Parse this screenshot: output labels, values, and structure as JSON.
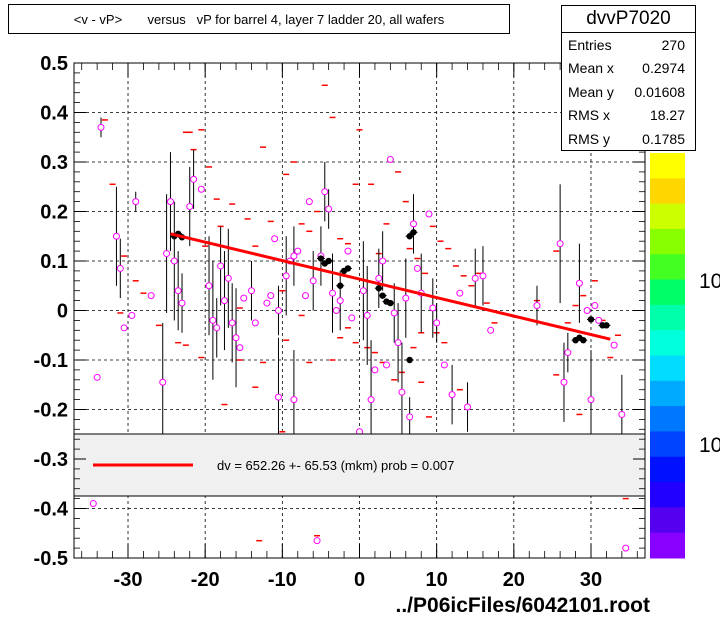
{
  "title": "<v - vP>       versus   vP for barrel 4, layer 7 ladder 20, all wafers",
  "stats": {
    "name": "dvvP7020",
    "rows": [
      {
        "label": "Entries",
        "value": "270"
      },
      {
        "label": "Mean x",
        "value": "0.2974"
      },
      {
        "label": "Mean y",
        "value": "0.01608"
      },
      {
        "label": "RMS x",
        "value": "18.27"
      },
      {
        "label": "RMS y",
        "value": "0.1785"
      }
    ]
  },
  "legend": {
    "text": "dv =  652.26 +- 65.53 (mkm) prob = 0.007"
  },
  "footer": "../P06icFiles/6042101.root",
  "colorbar": {
    "labels": [
      "10",
      "10"
    ]
  },
  "chart_data": {
    "type": "scatter",
    "xlim": [
      -37,
      37
    ],
    "ylim": [
      -0.5,
      0.5
    ],
    "xticks": [
      -30,
      -20,
      -10,
      0,
      10,
      20,
      30
    ],
    "xtick_labels": [
      "-30",
      "-20",
      "-10",
      "0",
      "10",
      "20",
      "30"
    ],
    "yticks": [
      -0.5,
      -0.4,
      -0.3,
      -0.2,
      -0.1,
      0,
      0.1,
      0.2,
      0.3,
      0.4,
      0.5
    ],
    "ytick_labels": [
      "-0.5",
      "-0.4",
      "-0.3",
      "-0.2",
      "-0.1",
      "0",
      "0.1",
      "0.2",
      "0.3",
      "0.4",
      "0.5"
    ],
    "grid": true,
    "fit_line": {
      "x": [
        -24.5,
        32.5
      ],
      "y": [
        0.155,
        -0.058
      ],
      "color": "#ff0000"
    },
    "profile_points": [
      {
        "x": -24,
        "y": 0.15
      },
      {
        "x": -23.5,
        "y": 0.155
      },
      {
        "x": -23,
        "y": 0.148
      },
      {
        "x": -5,
        "y": 0.105
      },
      {
        "x": -4.5,
        "y": 0.095
      },
      {
        "x": -4,
        "y": 0.1
      },
      {
        "x": -2,
        "y": 0.08
      },
      {
        "x": -1.5,
        "y": 0.085
      },
      {
        "x": -2.5,
        "y": 0.05
      },
      {
        "x": 2.5,
        "y": 0.045
      },
      {
        "x": 3,
        "y": 0.03
      },
      {
        "x": 3.5,
        "y": 0.018
      },
      {
        "x": 4,
        "y": 0.015
      },
      {
        "x": 6.5,
        "y": 0.15
      },
      {
        "x": 7,
        "y": 0.158
      },
      {
        "x": 6.5,
        "y": -0.1
      },
      {
        "x": 28,
        "y": -0.06
      },
      {
        "x": 28.5,
        "y": -0.055
      },
      {
        "x": 29,
        "y": -0.06
      },
      {
        "x": 30,
        "y": -0.018
      },
      {
        "x": 31.5,
        "y": -0.03
      },
      {
        "x": 32,
        "y": -0.03
      }
    ],
    "marker_points": [
      {
        "x": -33.5,
        "y": 0.37,
        "err": 0.02
      },
      {
        "x": -34,
        "y": -0.135,
        "err": 0.0
      },
      {
        "x": -31.5,
        "y": 0.15,
        "err": 0.1
      },
      {
        "x": -31,
        "y": 0.085,
        "err": 0.06
      },
      {
        "x": -30.5,
        "y": -0.035,
        "err": 0.0
      },
      {
        "x": -29.5,
        "y": -0.01,
        "err": 0.0
      },
      {
        "x": -29,
        "y": 0.22,
        "err": 0.02
      },
      {
        "x": -27,
        "y": 0.03,
        "err": 0.0
      },
      {
        "x": -25.5,
        "y": -0.145,
        "err": 0.12
      },
      {
        "x": -25,
        "y": 0.115,
        "err": 0.12
      },
      {
        "x": -24.5,
        "y": 0.22,
        "err": 0.1
      },
      {
        "x": -24,
        "y": 0.1,
        "err": 0.12
      },
      {
        "x": -23.5,
        "y": 0.04,
        "err": 0.08
      },
      {
        "x": -23,
        "y": 0.015,
        "err": 0.06
      },
      {
        "x": -22,
        "y": 0.21,
        "err": 0.08
      },
      {
        "x": -21.5,
        "y": 0.265,
        "err": 0.06
      },
      {
        "x": -20.5,
        "y": 0.245,
        "err": 0.0
      },
      {
        "x": -19.5,
        "y": 0.05,
        "err": 0.1
      },
      {
        "x": -19,
        "y": -0.02,
        "err": 0.12
      },
      {
        "x": -18.5,
        "y": -0.035,
        "err": 0.06
      },
      {
        "x": -18,
        "y": 0.09,
        "err": 0.08
      },
      {
        "x": -17.5,
        "y": 0.02,
        "err": 0.1
      },
      {
        "x": -17,
        "y": 0.065,
        "err": 0.1
      },
      {
        "x": -16.5,
        "y": -0.025,
        "err": 0.08
      },
      {
        "x": -16,
        "y": -0.055,
        "err": 0.1
      },
      {
        "x": -15.5,
        "y": -0.075,
        "err": 0.0
      },
      {
        "x": -15,
        "y": 0.025,
        "err": 0.0
      },
      {
        "x": -14,
        "y": 0.04,
        "err": 0.06
      },
      {
        "x": -13.5,
        "y": -0.025,
        "err": 0.0
      },
      {
        "x": -12,
        "y": 0.015,
        "err": 0.0
      },
      {
        "x": -11.5,
        "y": 0.03,
        "err": 0.0
      },
      {
        "x": -11,
        "y": 0.145,
        "err": 0.0
      },
      {
        "x": -10.5,
        "y": 0.0,
        "err": 0.05
      },
      {
        "x": -10.5,
        "y": -0.175,
        "err": 0.12
      },
      {
        "x": -9.5,
        "y": 0.07,
        "err": 0.08
      },
      {
        "x": -9,
        "y": 0.1,
        "err": 0.0
      },
      {
        "x": -8.5,
        "y": 0.11,
        "err": 0.06
      },
      {
        "x": -8.5,
        "y": -0.18,
        "err": 0.1
      },
      {
        "x": -8,
        "y": 0.12,
        "err": 0.0
      },
      {
        "x": -7,
        "y": 0.03,
        "err": 0.0
      },
      {
        "x": -6.5,
        "y": 0.22,
        "err": 0.0
      },
      {
        "x": -6,
        "y": 0.06,
        "err": 0.06
      },
      {
        "x": -5.5,
        "y": -0.465,
        "err": 0.0
      },
      {
        "x": -5,
        "y": 0.11,
        "err": 0.06
      },
      {
        "x": -4.5,
        "y": 0.24,
        "err": 0.06
      },
      {
        "x": -4,
        "y": 0.205,
        "err": 0.04
      },
      {
        "x": -3.5,
        "y": 0.035,
        "err": 0.08
      },
      {
        "x": -3,
        "y": 0.0,
        "err": 0.0
      },
      {
        "x": -2.5,
        "y": 0.02,
        "err": 0.06
      },
      {
        "x": -1.5,
        "y": 0.12,
        "err": 0.0
      },
      {
        "x": -1,
        "y": -0.015,
        "err": 0.0
      },
      {
        "x": 0,
        "y": -0.245,
        "err": 0.0
      },
      {
        "x": 0.5,
        "y": 0.04,
        "err": 0.1
      },
      {
        "x": 1,
        "y": -0.01,
        "err": 0.1
      },
      {
        "x": 1.5,
        "y": -0.18,
        "err": 0.12
      },
      {
        "x": 2,
        "y": -0.12,
        "err": 0.0
      },
      {
        "x": 2.5,
        "y": 0.065,
        "err": 0.06
      },
      {
        "x": 3,
        "y": 0.1,
        "err": 0.06
      },
      {
        "x": 3.5,
        "y": -0.11,
        "err": 0.0
      },
      {
        "x": 4,
        "y": 0.305,
        "err": 0.0
      },
      {
        "x": 4.5,
        "y": -0.005,
        "err": 0.06
      },
      {
        "x": 5,
        "y": -0.065,
        "err": 0.08
      },
      {
        "x": 5.5,
        "y": -0.165,
        "err": 0.1
      },
      {
        "x": 6,
        "y": 0.025,
        "err": 0.08
      },
      {
        "x": 6.5,
        "y": -0.215,
        "err": 0.04
      },
      {
        "x": 7,
        "y": 0.175,
        "err": 0.06
      },
      {
        "x": 7.5,
        "y": 0.085,
        "err": 0.0
      },
      {
        "x": 8,
        "y": 0.035,
        "err": 0.08
      },
      {
        "x": 9,
        "y": 0.195,
        "err": 0.0
      },
      {
        "x": 9.5,
        "y": 0.005,
        "err": 0.06
      },
      {
        "x": 10,
        "y": -0.025,
        "err": 0.04
      },
      {
        "x": 11,
        "y": -0.11,
        "err": 0.0
      },
      {
        "x": 12,
        "y": -0.17,
        "err": 0.06
      },
      {
        "x": 13,
        "y": 0.035,
        "err": 0.0
      },
      {
        "x": 14,
        "y": -0.195,
        "err": 0.05
      },
      {
        "x": 15,
        "y": 0.065,
        "err": 0.06
      },
      {
        "x": 16,
        "y": 0.07,
        "err": 0.06
      },
      {
        "x": 17,
        "y": -0.04,
        "err": 0.0
      },
      {
        "x": 23,
        "y": 0.01,
        "err": 0.04
      },
      {
        "x": 26,
        "y": 0.135,
        "err": 0.12
      },
      {
        "x": 26.5,
        "y": -0.145,
        "err": 0.08
      },
      {
        "x": 27,
        "y": -0.085,
        "err": 0.04
      },
      {
        "x": 28.5,
        "y": 0.055,
        "err": 0.08
      },
      {
        "x": 29.5,
        "y": 0.0,
        "err": 0.0
      },
      {
        "x": 30,
        "y": -0.18,
        "err": 0.1
      },
      {
        "x": 30.5,
        "y": 0.01,
        "err": 0.0
      },
      {
        "x": 31,
        "y": -0.02,
        "err": 0.0
      },
      {
        "x": 33,
        "y": -0.07,
        "err": 0.0
      },
      {
        "x": 34,
        "y": -0.21,
        "err": 0.08
      },
      {
        "x": 34.5,
        "y": -0.48,
        "err": 0.0
      },
      {
        "x": -34.5,
        "y": -0.39,
        "err": 0.0
      }
    ],
    "red_dashes": [
      {
        "x": -33,
        "y": 0.385
      },
      {
        "x": -32,
        "y": 0.255
      },
      {
        "x": -30.5,
        "y": 0.11
      },
      {
        "x": -29,
        "y": 0.06
      },
      {
        "x": -28,
        "y": 0.035
      },
      {
        "x": -22.5,
        "y": 0.36
      },
      {
        "x": -22,
        "y": 0.36
      },
      {
        "x": -21.5,
        "y": 0.325
      },
      {
        "x": -20.5,
        "y": 0.365
      },
      {
        "x": -19.5,
        "y": 0.29
      },
      {
        "x": -20,
        "y": 0.13
      },
      {
        "x": -18.5,
        "y": 0.225
      },
      {
        "x": -18,
        "y": 0.17
      },
      {
        "x": -16.5,
        "y": 0.215
      },
      {
        "x": -15.5,
        "y": 0.005
      },
      {
        "x": -14.5,
        "y": 0.185
      },
      {
        "x": -13.5,
        "y": 0.13
      },
      {
        "x": -12.5,
        "y": 0.33
      },
      {
        "x": -11.5,
        "y": 0.18
      },
      {
        "x": -10,
        "y": 0.04
      },
      {
        "x": -9.5,
        "y": 0.275
      },
      {
        "x": -8.5,
        "y": 0.3
      },
      {
        "x": -7.5,
        "y": 0.175
      },
      {
        "x": -6.5,
        "y": 0.16
      },
      {
        "x": -5.5,
        "y": 0.2
      },
      {
        "x": -4.5,
        "y": 0.455
      },
      {
        "x": -3.5,
        "y": 0.39
      },
      {
        "x": -2.5,
        "y": 0.145
      },
      {
        "x": -1.5,
        "y": 0.135
      },
      {
        "x": -0.5,
        "y": 0.255
      },
      {
        "x": 0,
        "y": 0.365
      },
      {
        "x": 1.5,
        "y": 0.255
      },
      {
        "x": 2.5,
        "y": 0.115
      },
      {
        "x": 3.5,
        "y": 0.175
      },
      {
        "x": 5,
        "y": 0.28
      },
      {
        "x": 6,
        "y": 0.22
      },
      {
        "x": 6.5,
        "y": 0.125
      },
      {
        "x": 7.5,
        "y": 0.105
      },
      {
        "x": 8.5,
        "y": 0.075
      },
      {
        "x": 9.5,
        "y": 0.17
      },
      {
        "x": 10.5,
        "y": 0.14
      },
      {
        "x": 11.5,
        "y": 0.125
      },
      {
        "x": 12.5,
        "y": 0.09
      },
      {
        "x": 13.5,
        "y": 0.07
      },
      {
        "x": 14.5,
        "y": 0.05
      },
      {
        "x": 15.5,
        "y": 0.075
      },
      {
        "x": 16.5,
        "y": 0.015
      },
      {
        "x": 17.5,
        "y": -0.025
      },
      {
        "x": 13,
        "y": -0.16
      },
      {
        "x": 11,
        "y": -0.065
      },
      {
        "x": 10,
        "y": -0.045
      },
      {
        "x": 9,
        "y": -0.215
      },
      {
        "x": 8,
        "y": -0.145
      },
      {
        "x": 7,
        "y": -0.075
      },
      {
        "x": 5.5,
        "y": -0.125
      },
      {
        "x": 4.5,
        "y": -0.14
      },
      {
        "x": 3,
        "y": -0.105
      },
      {
        "x": 2,
        "y": -0.085
      },
      {
        "x": 1,
        "y": -0.075
      },
      {
        "x": -0.5,
        "y": -0.065
      },
      {
        "x": -1.5,
        "y": -0.035
      },
      {
        "x": -2.5,
        "y": -0.055
      },
      {
        "x": -3.5,
        "y": -0.1
      },
      {
        "x": -6.5,
        "y": -0.105
      },
      {
        "x": -7.5,
        "y": -0.01
      },
      {
        "x": -9.5,
        "y": -0.06
      },
      {
        "x": -12.5,
        "y": -0.105
      },
      {
        "x": -13.5,
        "y": -0.155
      },
      {
        "x": -15.5,
        "y": -0.1
      },
      {
        "x": -17.5,
        "y": -0.19
      },
      {
        "x": -20.5,
        "y": -0.095
      },
      {
        "x": -22.5,
        "y": -0.07
      },
      {
        "x": -23.5,
        "y": -0.065
      },
      {
        "x": -26,
        "y": -0.03
      },
      {
        "x": -31,
        "y": -0.005
      },
      {
        "x": 23,
        "y": 0.02
      },
      {
        "x": 25.5,
        "y": 0.12
      },
      {
        "x": 27,
        "y": -0.025
      },
      {
        "x": 28,
        "y": 0.01
      },
      {
        "x": 29,
        "y": 0.03
      },
      {
        "x": 30.5,
        "y": 0.06
      },
      {
        "x": 31.5,
        "y": -0.02
      },
      {
        "x": 32.5,
        "y": -0.095
      },
      {
        "x": 33.5,
        "y": -0.05
      },
      {
        "x": 34.5,
        "y": -0.38
      },
      {
        "x": 28.5,
        "y": -0.21
      },
      {
        "x": 25.5,
        "y": -0.13
      },
      {
        "x": -16,
        "y": -0.25
      },
      {
        "x": -10,
        "y": -0.245
      },
      {
        "x": 9,
        "y": -0.25
      },
      {
        "x": -5.5,
        "y": -0.455
      },
      {
        "x": -13,
        "y": -0.465
      },
      {
        "x": 8,
        "y": -0.045
      }
    ]
  }
}
